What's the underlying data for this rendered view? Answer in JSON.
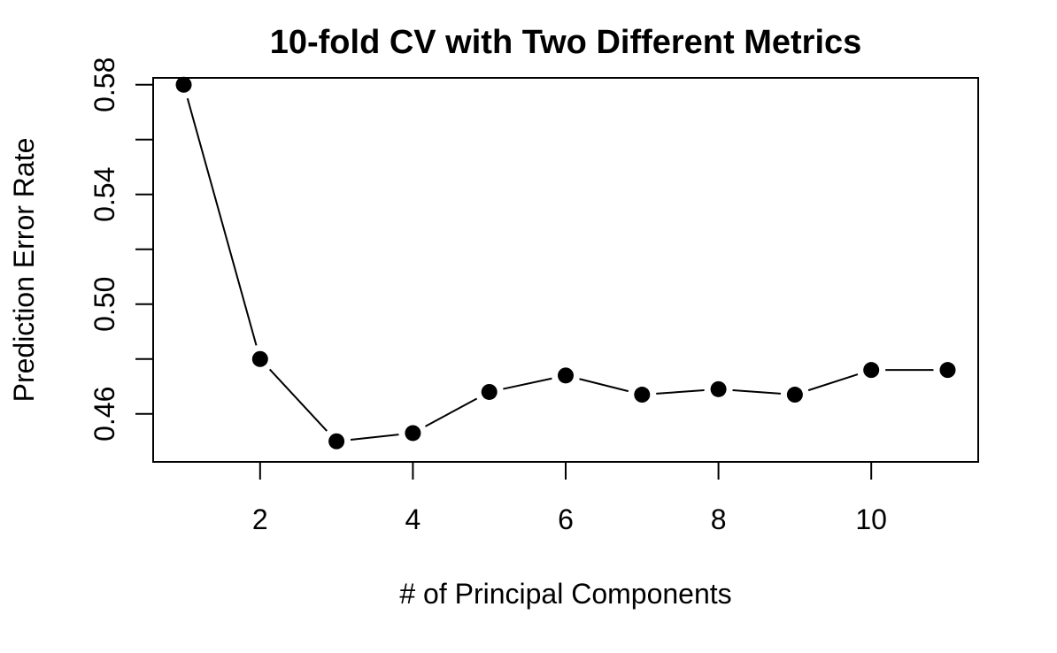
{
  "chart_data": {
    "type": "line",
    "title": "10-fold CV with Two Different Metrics",
    "xlabel": "# of Principal Components",
    "ylabel": "Prediction Error Rate",
    "x": [
      1,
      2,
      3,
      4,
      5,
      6,
      7,
      8,
      9,
      10,
      11
    ],
    "series": [
      {
        "values": [
          0.58,
          0.48,
          0.45,
          0.453,
          0.468,
          0.474,
          0.467,
          0.469,
          0.467,
          0.476,
          0.476
        ]
      }
    ],
    "xlim": [
      0.6,
      11.4
    ],
    "ylim": [
      0.4425,
      0.5825
    ],
    "xticks": [
      2,
      4,
      6,
      8,
      10
    ],
    "xtick_labels": [
      "2",
      "4",
      "6",
      "8",
      "10"
    ],
    "yticks": [
      0.46,
      0.48,
      0.5,
      0.52,
      0.54,
      0.56,
      0.58
    ],
    "ytick_labels": [
      "0.46",
      "",
      "0.50",
      "",
      "0.54",
      "",
      "0.58"
    ],
    "grid": false,
    "markers": "filled-circle",
    "line_color": "#000000",
    "marker_color": "#000000"
  }
}
